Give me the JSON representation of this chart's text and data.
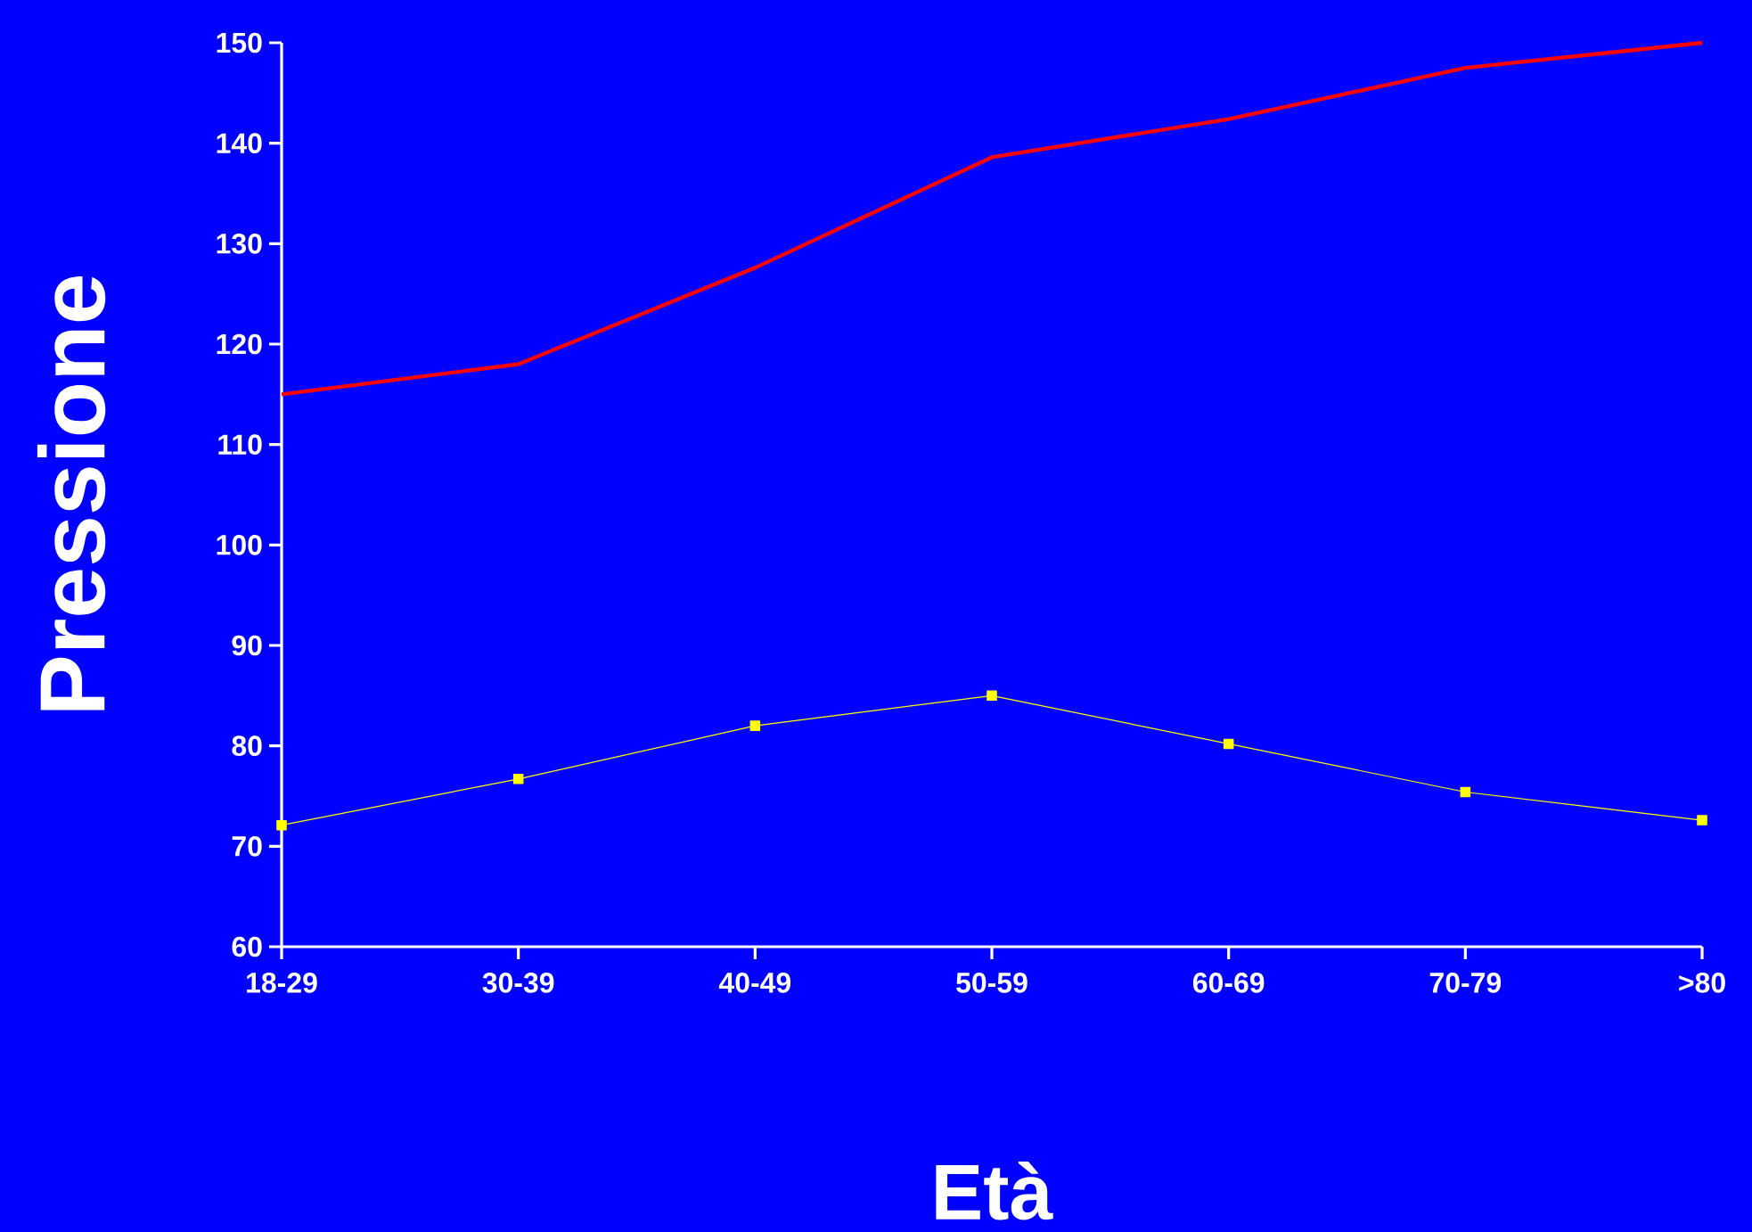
{
  "chart_data": {
    "type": "line",
    "xlabel": "Età",
    "ylabel": "Pressione",
    "categories": [
      "18-29",
      "30-39",
      "40-49",
      "50-59",
      "60-69",
      "70-79",
      ">80"
    ],
    "ylim": [
      60,
      150
    ],
    "yticks": [
      60,
      70,
      80,
      90,
      100,
      110,
      120,
      130,
      140,
      150
    ],
    "series": [
      {
        "color": "#ff0000",
        "marker": "none",
        "values": [
          115,
          118,
          127.6,
          138.6,
          142.4,
          147.5,
          150
        ]
      },
      {
        "color": "#ffff00",
        "marker": "square",
        "values": [
          72.1,
          76.7,
          82,
          85,
          80.2,
          75.4,
          72.6
        ]
      }
    ]
  }
}
